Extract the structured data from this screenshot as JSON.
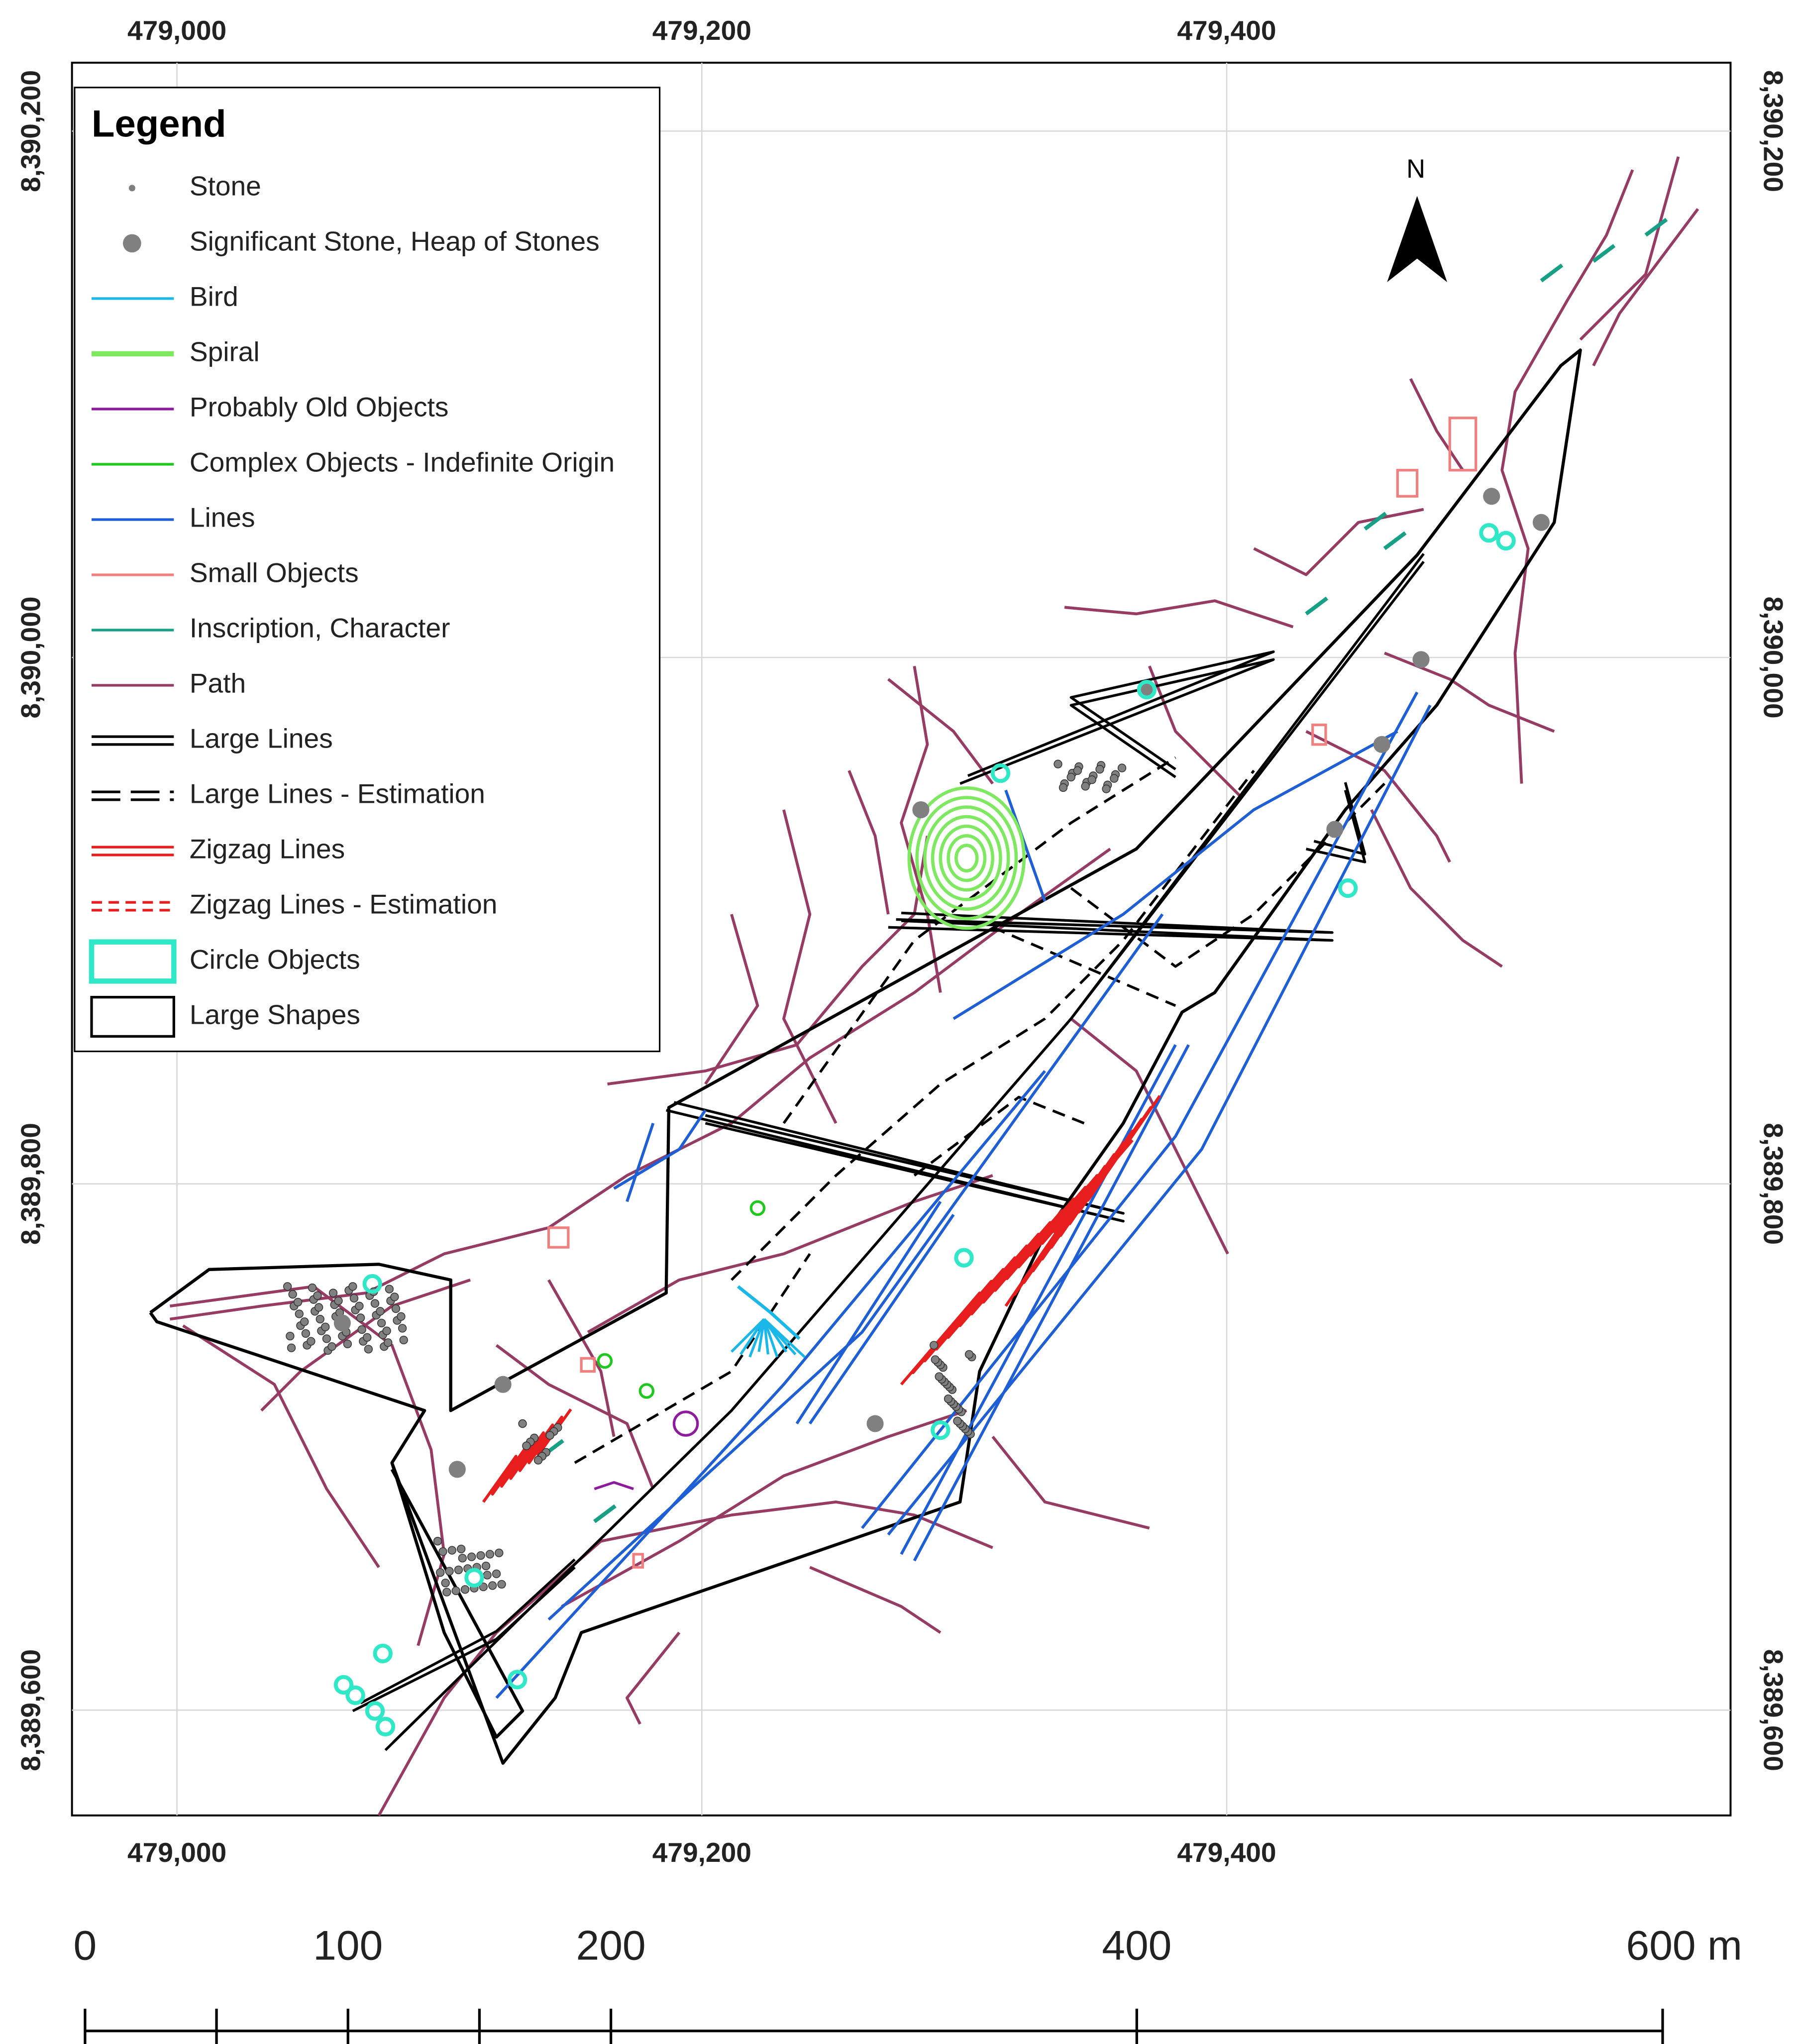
{
  "map": {
    "x_axis": {
      "lim": [
        478960,
        479592
      ],
      "ticks": [
        {
          "value": 479000,
          "label": "479,000"
        },
        {
          "value": 479200,
          "label": "479,200"
        },
        {
          "value": 479400,
          "label": "479,400"
        }
      ]
    },
    "y_axis": {
      "lim": [
        8389560,
        8390226
      ],
      "ticks": [
        {
          "value": 8389600,
          "label": "8,389,600"
        },
        {
          "value": 8389800,
          "label": "8,389,800"
        },
        {
          "value": 8390000,
          "label": "8,390,000"
        },
        {
          "value": 8390200,
          "label": "8,390,200"
        }
      ]
    },
    "grid": true,
    "north_label": "N",
    "legend": {
      "title": "Legend",
      "items": [
        {
          "name": "Stone",
          "symbol": "dot",
          "color": "#808080"
        },
        {
          "name": "Significant Stone, Heap of Stones",
          "symbol": "big-dot",
          "color": "#808080"
        },
        {
          "name": "Bird",
          "symbol": "line",
          "color": "#1ab8e8"
        },
        {
          "name": "Spiral",
          "symbol": "thick-line",
          "color": "#7ee860"
        },
        {
          "name": "Probably Old Objects",
          "symbol": "line",
          "color": "#8e1a9e"
        },
        {
          "name": "Complex Objects - Indefinite Origin",
          "symbol": "line",
          "color": "#1ec81e"
        },
        {
          "name": "Lines",
          "symbol": "line",
          "color": "#1f5fd6"
        },
        {
          "name": "Small Objects",
          "symbol": "line",
          "color": "#f08080"
        },
        {
          "name": "Inscription, Character",
          "symbol": "line",
          "color": "#17a085"
        },
        {
          "name": "Path",
          "symbol": "line",
          "color": "#963c64"
        },
        {
          "name": "Large Lines",
          "symbol": "double-line",
          "color": "#000000"
        },
        {
          "name": "Large Lines - Estimation",
          "symbol": "dashed-double",
          "color": "#000000"
        },
        {
          "name": "Zigzag Lines",
          "symbol": "double-line",
          "color": "#e81e1e"
        },
        {
          "name": "Zigzag Lines - Estimation",
          "symbol": "dashed-double-fine",
          "color": "#e81e1e"
        },
        {
          "name": "Circle Objects",
          "symbol": "box-thick",
          "color": "#2ee8c8"
        },
        {
          "name": "Large Shapes",
          "symbol": "box",
          "color": "#000000"
        }
      ]
    },
    "scale_bar": {
      "lim": [
        0,
        600
      ],
      "ticks": [
        0,
        50,
        100,
        150,
        200,
        400,
        600
      ],
      "labels": [
        0,
        100,
        200,
        400,
        {
          "value": 600,
          "label": "600 m"
        }
      ]
    }
  }
}
